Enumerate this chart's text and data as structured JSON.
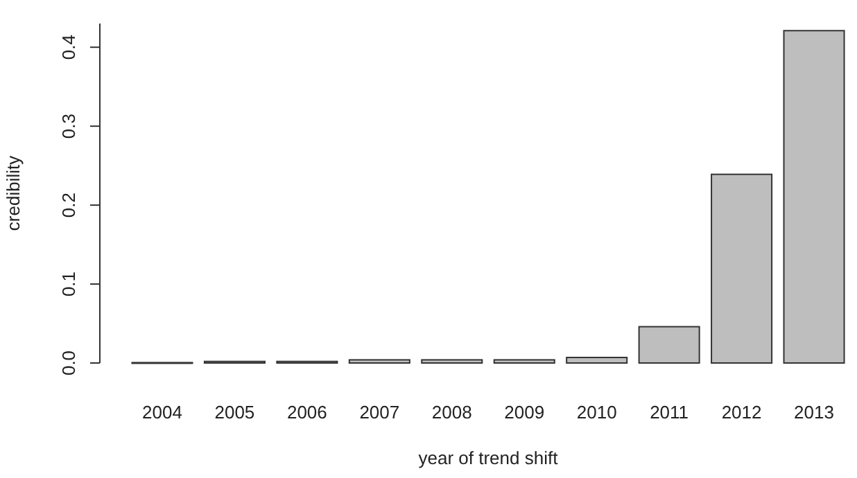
{
  "chart_data": {
    "type": "bar",
    "xlabel": "year of trend shift",
    "ylabel": "credibility",
    "categories": [
      "2004",
      "2005",
      "2006",
      "2007",
      "2008",
      "2009",
      "2010",
      "2011",
      "2012",
      "2013"
    ],
    "values": [
      0.0005,
      0.002,
      0.002,
      0.004,
      0.004,
      0.004,
      0.007,
      0.046,
      0.239,
      0.421
    ],
    "color": "#bebebe",
    "ylim": [
      0,
      0.43
    ],
    "yticks": [
      {
        "value": 0,
        "label": "0.0"
      },
      {
        "value": 0.1,
        "label": "0.1"
      },
      {
        "value": 0.2,
        "label": "0.2"
      },
      {
        "value": 0.3,
        "label": "0.3"
      },
      {
        "value": 0.4,
        "label": "0.4"
      }
    ],
    "grid": false
  }
}
